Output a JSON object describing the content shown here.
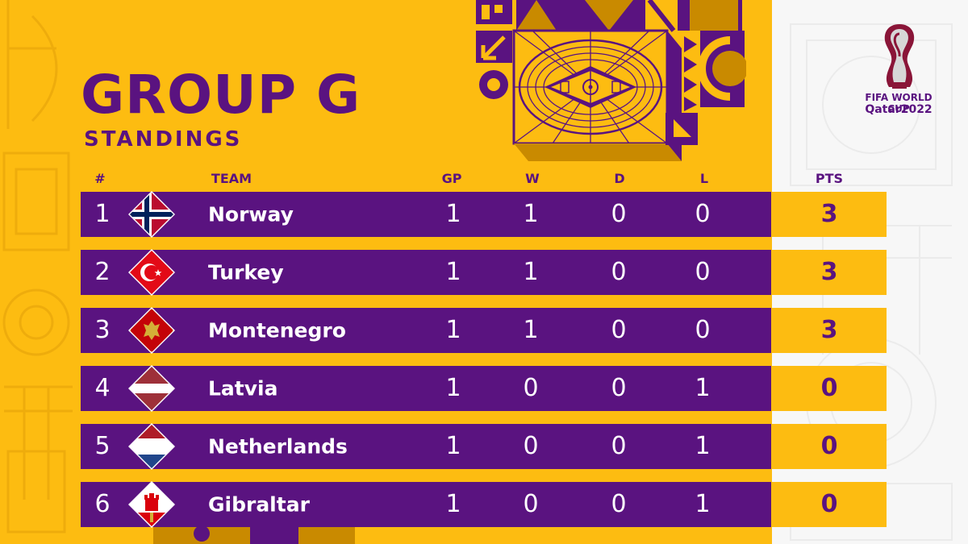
{
  "header": {
    "title": "GROUP G",
    "subtitle": "STANDINGS"
  },
  "columns": {
    "rank": "#",
    "team": "TEAM",
    "gp": "GP",
    "w": "W",
    "d": "D",
    "l": "L",
    "pts": "PTS"
  },
  "standings": [
    {
      "rank": "1",
      "team": "Norway",
      "flag": "norway-flag",
      "gp": "1",
      "w": "1",
      "d": "0",
      "l": "0",
      "pts": "3"
    },
    {
      "rank": "2",
      "team": "Turkey",
      "flag": "turkey-flag",
      "gp": "1",
      "w": "1",
      "d": "0",
      "l": "0",
      "pts": "3"
    },
    {
      "rank": "3",
      "team": "Montenegro",
      "flag": "montenegro-flag",
      "gp": "1",
      "w": "1",
      "d": "0",
      "l": "0",
      "pts": "3"
    },
    {
      "rank": "4",
      "team": "Latvia",
      "flag": "latvia-flag",
      "gp": "1",
      "w": "0",
      "d": "0",
      "l": "1",
      "pts": "0"
    },
    {
      "rank": "5",
      "team": "Netherlands",
      "flag": "netherlands-flag",
      "gp": "1",
      "w": "0",
      "d": "0",
      "l": "1",
      "pts": "0"
    },
    {
      "rank": "6",
      "team": "Gibraltar",
      "flag": "gibraltar-flag",
      "gp": "1",
      "w": "0",
      "d": "0",
      "l": "1",
      "pts": "0"
    }
  ],
  "logo": {
    "line1": "FIFA WORLD CUP",
    "line2": "Qatar2022",
    "icon": "world-cup-emblem-icon"
  },
  "colors": {
    "purple": "#5a1380",
    "yellow": "#fdbc11",
    "white": "#ffffff"
  }
}
